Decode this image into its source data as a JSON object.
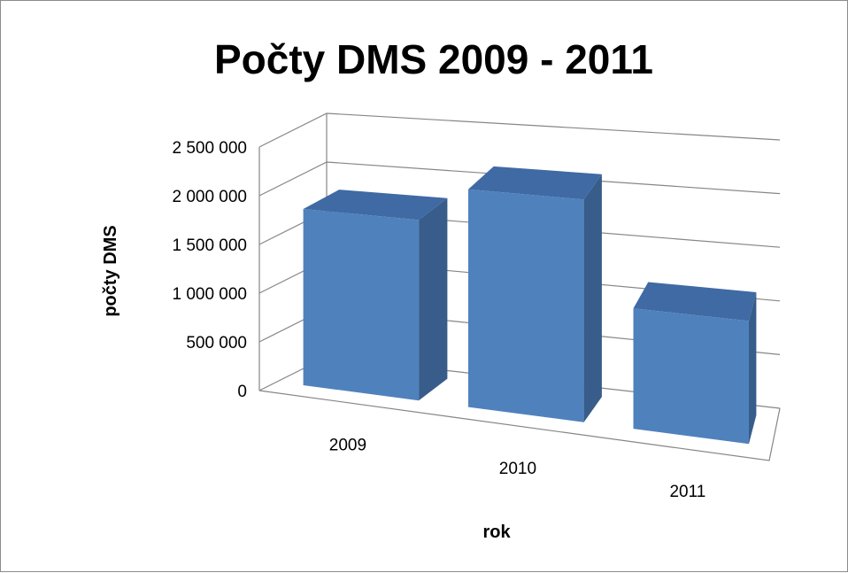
{
  "chart_data": {
    "type": "bar",
    "title": "Počty DMS 2009 - 2011",
    "xlabel": "rok",
    "ylabel": "počty DMS",
    "categories": [
      "2009",
      "2010",
      "2011"
    ],
    "values": [
      1800000,
      2150000,
      1150000
    ],
    "ylim": [
      0,
      2500000
    ],
    "ytick_values": [
      0,
      500000,
      1000000,
      1500000,
      2000000,
      2500000
    ],
    "yticks": [
      "0",
      "500 000",
      "1 000 000",
      "1 500 000",
      "2 000 000",
      "2 500 000"
    ],
    "grid": true,
    "legend": "none",
    "style": "3d-column",
    "colors": {
      "front": "#4f81bd",
      "side": "#385d8a",
      "top": "#3f6aa3",
      "grid": "#868686",
      "axis_text": "#000000"
    }
  }
}
